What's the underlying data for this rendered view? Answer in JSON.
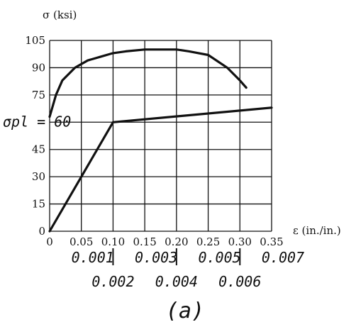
{
  "chart_data": {
    "type": "line",
    "ylabel": "σ (ksi)",
    "xlabel": "ε (in./in.)",
    "xlim": [
      0,
      0.35
    ],
    "ylim": [
      0,
      105
    ],
    "grid": true,
    "x_ticks": [
      "0",
      "0.05",
      "0.10",
      "0.15",
      "0.20",
      "0.25",
      "0.30",
      "0.35"
    ],
    "y_ticks": [
      "0",
      "15",
      "30",
      "45",
      "60",
      "75",
      "90",
      "105"
    ],
    "y_tick_60_label": "σpl = 60",
    "secondary_x_ticks": [
      {
        "x": 0.001,
        "label": "0.001",
        "row": "upper"
      },
      {
        "x": 0.002,
        "label": "0.002",
        "row": "lower"
      },
      {
        "x": 0.003,
        "label": "0.003",
        "row": "upper"
      },
      {
        "x": 0.004,
        "label": "0.004",
        "row": "lower"
      },
      {
        "x": 0.005,
        "label": "0.005",
        "row": "upper"
      },
      {
        "x": 0.006,
        "label": "0.006",
        "row": "lower"
      },
      {
        "x": 0.007,
        "label": "0.007",
        "row": "upper"
      }
    ],
    "series": [
      {
        "axis": "primary",
        "x": [
          0.0,
          0.01,
          0.02,
          0.04,
          0.06,
          0.08,
          0.1,
          0.12,
          0.15,
          0.18,
          0.2,
          0.22,
          0.25,
          0.28,
          0.3,
          0.31
        ],
        "y": [
          63,
          75,
          83,
          90,
          94,
          96,
          98,
          99,
          100,
          100,
          100,
          99,
          97,
          90,
          83,
          79
        ]
      },
      {
        "axis": "secondary",
        "x": [
          0.0,
          0.002,
          0.007
        ],
        "y": [
          0,
          60,
          68
        ]
      }
    ],
    "caption": "(a)"
  }
}
